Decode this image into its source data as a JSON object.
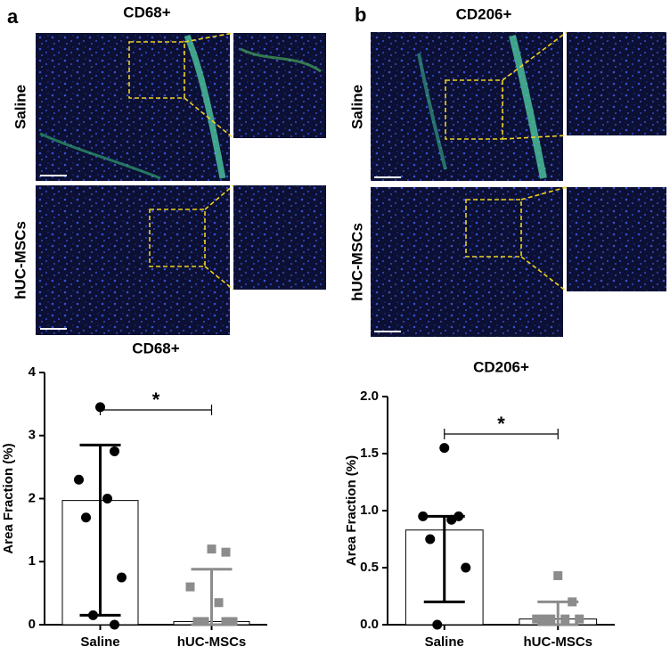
{
  "panels": [
    {
      "letter": "a",
      "title": "CD68+",
      "rows": [
        "Saline",
        "hUC-MSCs"
      ]
    },
    {
      "letter": "b",
      "title": "CD206+",
      "rows": [
        "Saline",
        "hUC-MSCs"
      ]
    }
  ],
  "chart_data": [
    {
      "type": "bar",
      "title": "CD68+",
      "ylabel": "Area Fraction (%)",
      "categories": [
        "Saline",
        "hUC-MSCs"
      ],
      "values": [
        1.97,
        0.05
      ],
      "whiskers": [
        [
          0.15,
          2.85
        ],
        [
          0,
          0.88
        ]
      ],
      "points": [
        [
          3.45,
          2.75,
          2.3,
          2.0,
          1.7,
          0.75,
          0.15,
          0.0
        ],
        [
          1.2,
          1.15,
          0.6,
          0.35,
          0.05,
          0.05,
          0.05,
          0.05
        ]
      ],
      "colors": [
        "#000000",
        "#8c8c8c"
      ],
      "annotation": "*",
      "ylim": [
        0,
        4
      ],
      "yticks": [
        0,
        1,
        2,
        3,
        4
      ]
    },
    {
      "type": "bar",
      "title": "CD206+",
      "ylabel": "Area Fraction (%)",
      "categories": [
        "Saline",
        "hUC-MSCs"
      ],
      "values": [
        0.83,
        0.05
      ],
      "whiskers": [
        [
          0.2,
          0.95
        ],
        [
          0,
          0.2
        ]
      ],
      "points": [
        [
          1.55,
          0.95,
          0.95,
          0.92,
          0.75,
          0.5,
          0.0
        ],
        [
          0.43,
          0.2,
          0.05,
          0.05,
          0.05,
          0.05,
          0.05
        ]
      ],
      "colors": [
        "#000000",
        "#8c8c8c"
      ],
      "annotation": "*",
      "ylim": [
        0,
        2
      ],
      "yticks": [
        {
          "value": 0,
          "label": "0.0"
        },
        {
          "value": 0.5,
          "label": "0.5"
        },
        {
          "value": 1,
          "label": "1.0"
        },
        {
          "value": 1.5,
          "label": "1.5"
        },
        {
          "value": 2,
          "label": "2.0"
        }
      ]
    }
  ]
}
